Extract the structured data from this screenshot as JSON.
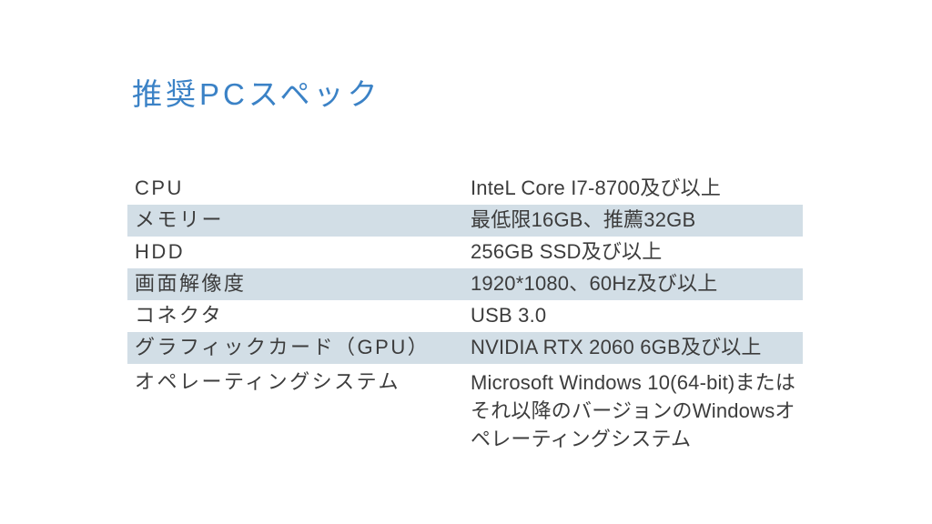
{
  "title": {
    "text": "推奨PCスペック",
    "color": "#3b82c6"
  },
  "table": {
    "stripe_color": "#d2dee6",
    "text_color": "#3c3c3c",
    "rows": [
      {
        "label": "CPU",
        "value": "InteL Core I7-8700及び以上",
        "shaded": false
      },
      {
        "label": "メモリー",
        "value": "最低限16GB、推薦32GB",
        "shaded": true
      },
      {
        "label": "HDD",
        "value": "256GB SSD及び以上",
        "shaded": false
      },
      {
        "label": "画面解像度",
        "value": "1920*1080、60Hz及び以上",
        "shaded": true
      },
      {
        "label": "コネクタ",
        "value": "USB 3.0",
        "shaded": false
      },
      {
        "label": "グラフィックカード（GPU）",
        "value": "NVIDIA RTX 2060 6GB及び以上",
        "shaded": true
      },
      {
        "label": "オペレーティングシステム",
        "value": "Microsoft Windows 10(64-bit)またはそれ以降のバージョンのWindowsオペレーティングシステム",
        "shaded": false
      }
    ]
  }
}
